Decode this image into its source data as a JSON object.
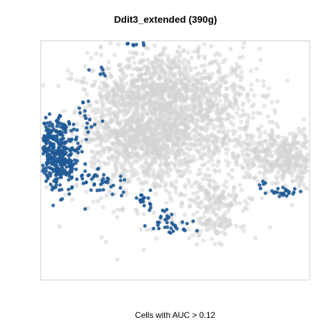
{
  "chart_data": {
    "type": "scatter",
    "title": "Ddit3_extended (390g)",
    "xlabel": "Cells with AUC > 0.12",
    "ylabel": "",
    "grid": false,
    "legend": "none",
    "colors": {
      "background_cells": "#d3d3d3",
      "high_auc_cells": "#1f5a96",
      "frame": "#cccccc"
    },
    "series": [
      {
        "role": "background",
        "clusters": [
          {
            "center": [
              -2,
              10
            ],
            "spread": [
              13,
              12
            ],
            "count": 1500
          },
          {
            "center": [
              2,
              20
            ],
            "spread": [
              9,
              8
            ],
            "count": 500
          },
          {
            "center": [
              -6,
              24
            ],
            "spread": [
              5,
              4
            ],
            "count": 120
          },
          {
            "center": [
              -8,
              6
            ],
            "spread": [
              7,
              4
            ],
            "count": 200
          },
          {
            "center": [
              -14,
              9
            ],
            "spread": [
              5,
              6
            ],
            "count": 180
          },
          {
            "center": [
              31,
              3
            ],
            "spread": [
              7,
              3.5
            ],
            "count": 300
          },
          {
            "center": [
              33,
              -3
            ],
            "spread": [
              5,
              3
            ],
            "count": 160
          },
          {
            "center": [
              12,
              -11
            ],
            "spread": [
              5,
              2
            ],
            "count": 80
          },
          {
            "center": [
              12,
              -19
            ],
            "spread": [
              3.5,
              3
            ],
            "count": 110
          },
          {
            "center": [
              -17,
              20
            ],
            "spread": [
              3,
              2
            ],
            "count": 40
          }
        ]
      },
      {
        "role": "highlight",
        "clusters": [
          {
            "center": [
              -32,
              0
            ],
            "spread": [
              3,
              5
            ],
            "count": 320
          },
          {
            "center": [
              -33,
              8
            ],
            "spread": [
              2.5,
              2.5
            ],
            "count": 80
          },
          {
            "center": [
              -22,
              -6
            ],
            "spread": [
              2,
              1.5
            ],
            "count": 22
          },
          {
            "center": [
              -17,
              -8
            ],
            "spread": [
              2.5,
              1.5
            ],
            "count": 16
          },
          {
            "center": [
              -8,
              -12
            ],
            "spread": [
              2,
              1.5
            ],
            "count": 18
          },
          {
            "center": [
              0,
              -19
            ],
            "spread": [
              3,
              2
            ],
            "count": 35
          },
          {
            "center": [
              31,
              -10
            ],
            "spread": [
              2,
              0.8
            ],
            "count": 22
          },
          {
            "center": [
              -20,
              26
            ],
            "spread": [
              1.5,
              1.5
            ],
            "count": 6
          },
          {
            "center": [
              -24,
              16
            ],
            "spread": [
              1.5,
              1.5
            ],
            "count": 7
          },
          {
            "center": [
              -22,
              11
            ],
            "spread": [
              1.5,
              2
            ],
            "count": 9
          },
          {
            "center": [
              -11,
              36
            ],
            "spread": [
              2,
              0.5
            ],
            "count": 10
          },
          {
            "center": [
              25,
              -8
            ],
            "spread": [
              1.5,
              1
            ],
            "count": 6
          }
        ]
      }
    ]
  }
}
